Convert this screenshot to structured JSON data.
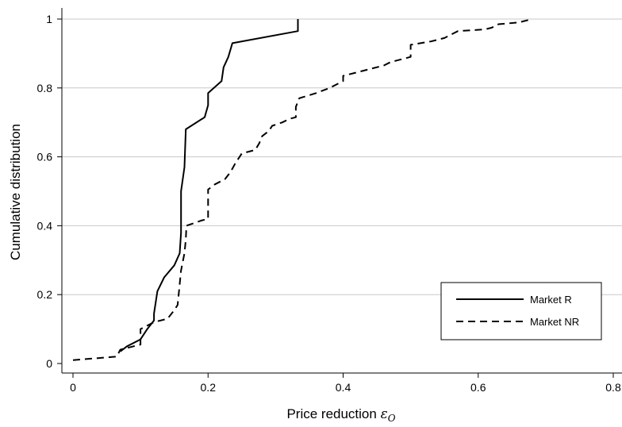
{
  "chart_data": {
    "type": "line",
    "title": "",
    "xlabel": "Price reduction ",
    "xlabel_symbol": "ε",
    "xlabel_subscript": "O",
    "ylabel": "Cumulative distribution",
    "xlim": [
      0,
      0.8
    ],
    "ylim": [
      0,
      1
    ],
    "x_ticks": [
      "0",
      "0.2",
      "0.4",
      "0.6",
      "0.8"
    ],
    "y_ticks": [
      "0",
      "0.2",
      "0.4",
      "0.6",
      "0.8",
      "1"
    ],
    "grid": "horizontal",
    "legend_position": "bottom-right",
    "series": [
      {
        "name": "Market R",
        "style": "solid",
        "color": "#000000",
        "points": [
          [
            0.07,
            0.035
          ],
          [
            0.08,
            0.05
          ],
          [
            0.1,
            0.07
          ],
          [
            0.11,
            0.1
          ],
          [
            0.12,
            0.125
          ],
          [
            0.12,
            0.145
          ],
          [
            0.125,
            0.21
          ],
          [
            0.135,
            0.25
          ],
          [
            0.15,
            0.285
          ],
          [
            0.158,
            0.32
          ],
          [
            0.16,
            0.38
          ],
          [
            0.16,
            0.5
          ],
          [
            0.165,
            0.57
          ],
          [
            0.167,
            0.68
          ],
          [
            0.195,
            0.715
          ],
          [
            0.2,
            0.75
          ],
          [
            0.2,
            0.785
          ],
          [
            0.22,
            0.82
          ],
          [
            0.223,
            0.86
          ],
          [
            0.23,
            0.89
          ],
          [
            0.236,
            0.93
          ],
          [
            0.333,
            0.965
          ],
          [
            0.333,
            1.0
          ]
        ]
      },
      {
        "name": "Market NR",
        "style": "dashed",
        "color": "#000000",
        "points": [
          [
            0,
            0.01
          ],
          [
            0.065,
            0.02
          ],
          [
            0.07,
            0.04
          ],
          [
            0.1,
            0.055
          ],
          [
            0.1,
            0.1
          ],
          [
            0.12,
            0.12
          ],
          [
            0.14,
            0.13
          ],
          [
            0.15,
            0.155
          ],
          [
            0.155,
            0.17
          ],
          [
            0.16,
            0.27
          ],
          [
            0.165,
            0.32
          ],
          [
            0.167,
            0.36
          ],
          [
            0.168,
            0.4
          ],
          [
            0.19,
            0.415
          ],
          [
            0.2,
            0.42
          ],
          [
            0.2,
            0.505
          ],
          [
            0.21,
            0.52
          ],
          [
            0.225,
            0.535
          ],
          [
            0.233,
            0.555
          ],
          [
            0.24,
            0.58
          ],
          [
            0.25,
            0.61
          ],
          [
            0.26,
            0.615
          ],
          [
            0.27,
            0.62
          ],
          [
            0.276,
            0.64
          ],
          [
            0.28,
            0.66
          ],
          [
            0.29,
            0.675
          ],
          [
            0.295,
            0.69
          ],
          [
            0.31,
            0.7
          ],
          [
            0.32,
            0.71
          ],
          [
            0.33,
            0.715
          ],
          [
            0.33,
            0.745
          ],
          [
            0.335,
            0.77
          ],
          [
            0.36,
            0.785
          ],
          [
            0.38,
            0.8
          ],
          [
            0.39,
            0.81
          ],
          [
            0.4,
            0.82
          ],
          [
            0.4,
            0.835
          ],
          [
            0.42,
            0.845
          ],
          [
            0.44,
            0.855
          ],
          [
            0.46,
            0.865
          ],
          [
            0.47,
            0.875
          ],
          [
            0.49,
            0.885
          ],
          [
            0.5,
            0.89
          ],
          [
            0.5,
            0.925
          ],
          [
            0.53,
            0.935
          ],
          [
            0.55,
            0.945
          ],
          [
            0.56,
            0.955
          ],
          [
            0.57,
            0.965
          ],
          [
            0.61,
            0.97
          ],
          [
            0.62,
            0.975
          ],
          [
            0.63,
            0.985
          ],
          [
            0.66,
            0.99
          ],
          [
            0.68,
            1.0
          ]
        ]
      }
    ]
  }
}
